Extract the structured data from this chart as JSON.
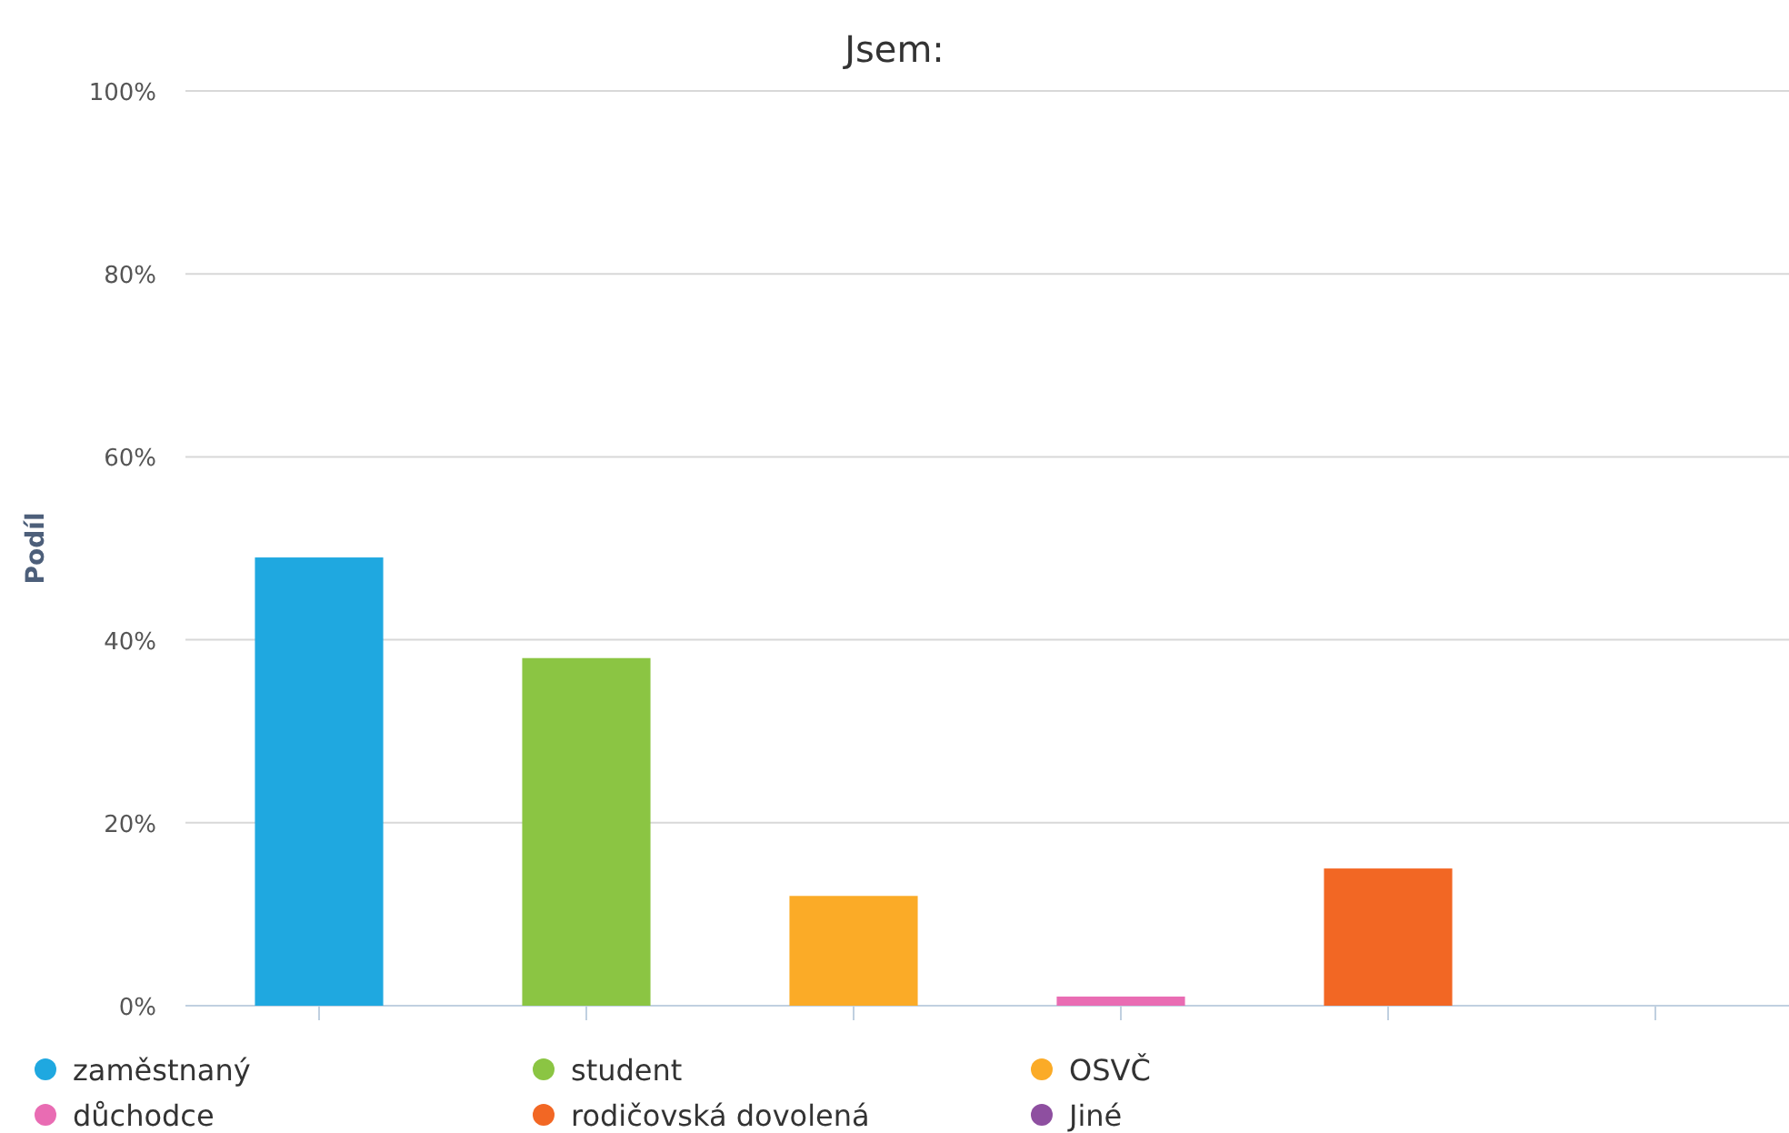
{
  "chart_data": {
    "type": "bar",
    "title": "Jsem:",
    "ylabel": "Podíl",
    "categories": [
      null,
      null,
      null,
      null,
      null,
      null
    ],
    "series": [
      {
        "name": "zaměstnaný",
        "color": "#1fa8e0",
        "values": [
          49,
          null,
          null,
          null,
          null,
          null
        ]
      },
      {
        "name": "student",
        "color": "#8bc543",
        "values": [
          null,
          38,
          null,
          null,
          null,
          null
        ]
      },
      {
        "name": "OSVČ",
        "color": "#fbab27",
        "values": [
          null,
          null,
          12,
          null,
          null,
          null
        ]
      },
      {
        "name": "důchodce",
        "color": "#e96cb3",
        "values": [
          null,
          null,
          null,
          1,
          null,
          null
        ]
      },
      {
        "name": "rodičovská dovolená",
        "color": "#f26724",
        "values": [
          null,
          null,
          null,
          null,
          15,
          null
        ]
      },
      {
        "name": "Jiné",
        "color": "#8e4fa0",
        "values": [
          null,
          null,
          null,
          null,
          null,
          0
        ]
      }
    ],
    "ylim": [
      0,
      100
    ],
    "yticks": [
      {
        "value": 0,
        "label": "0%"
      },
      {
        "value": 20,
        "label": "20%"
      },
      {
        "value": 40,
        "label": "40%"
      },
      {
        "value": 60,
        "label": "60%"
      },
      {
        "value": 80,
        "label": "80%"
      },
      {
        "value": 100,
        "label": "100%"
      }
    ],
    "grid": "y",
    "legend": "bottom"
  }
}
